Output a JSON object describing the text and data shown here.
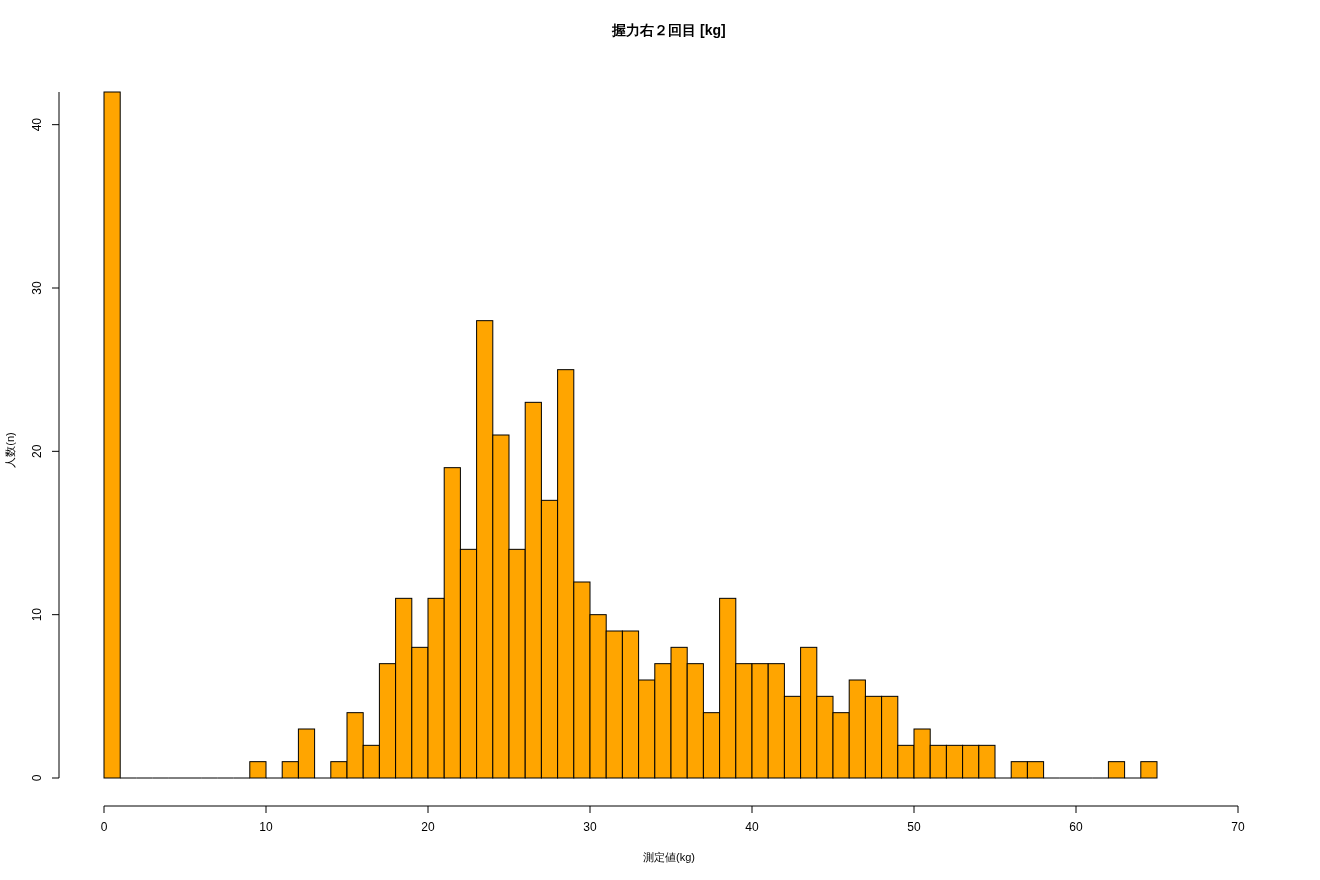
{
  "chart_data": {
    "type": "histogram",
    "title": "握力右２回目 [kg]",
    "xlabel": "測定値(kg)",
    "ylabel": "人数(n)",
    "color": "#ffa500",
    "bins": [
      0,
      1,
      2,
      3,
      4,
      5,
      6,
      7,
      8,
      9,
      10,
      11,
      12,
      13,
      14,
      15,
      16,
      17,
      18,
      19,
      20,
      21,
      22,
      23,
      24,
      25,
      26,
      27,
      28,
      29,
      30,
      31,
      32,
      33,
      34,
      35,
      36,
      37,
      38,
      39,
      40,
      41,
      42,
      43,
      44,
      45,
      46,
      47,
      48,
      49,
      50,
      51,
      52,
      53,
      54,
      55,
      56,
      57,
      58,
      59,
      60,
      61,
      62,
      63,
      64,
      65
    ],
    "values": [
      42,
      0,
      0,
      0,
      0,
      0,
      0,
      0,
      0,
      1,
      0,
      1,
      3,
      0,
      1,
      4,
      2,
      7,
      11,
      8,
      11,
      19,
      14,
      28,
      21,
      14,
      23,
      17,
      25,
      12,
      10,
      9,
      9,
      6,
      7,
      8,
      7,
      4,
      11,
      7,
      7,
      7,
      5,
      8,
      5,
      4,
      6,
      5,
      5,
      2,
      3,
      2,
      2,
      2,
      2,
      0,
      1,
      1,
      0,
      0,
      0,
      0,
      1,
      0,
      1
    ],
    "xlim": [
      0,
      70
    ],
    "xticks": [
      0,
      10,
      20,
      30,
      40,
      50,
      60,
      70
    ],
    "ylim": [
      0,
      42
    ],
    "yticks": [
      0,
      10,
      20,
      30,
      40
    ],
    "grid": false
  }
}
